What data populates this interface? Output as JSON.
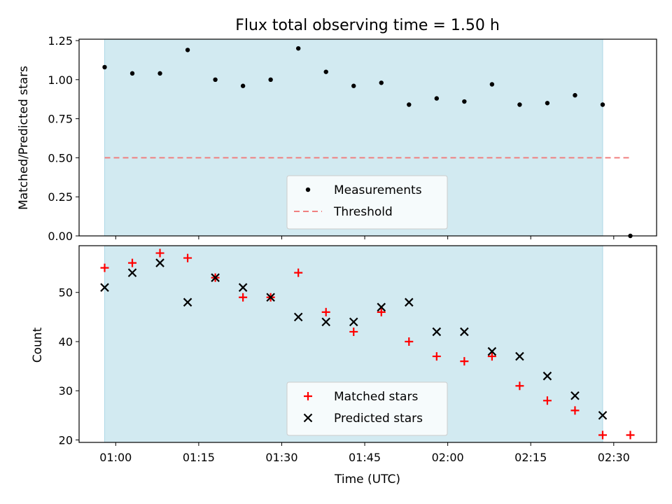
{
  "chart_data": [
    {
      "type": "scatter",
      "title": "Flux total observing time = 1.50 h",
      "ylabel": "Matched/Predicted stars",
      "xlabel": "",
      "ylim": [
        0,
        1.25
      ],
      "yticks": [
        "0.00",
        "0.25",
        "0.50",
        "0.75",
        "1.00",
        "1.25"
      ],
      "shaded_span": [
        "00:58",
        "02:28"
      ],
      "shade_color": "#add8e6",
      "legend_placement": "lower center",
      "series": [
        {
          "name": "Measurements",
          "marker": "dot",
          "color": "#000000",
          "x": [
            "00:58",
            "01:03",
            "01:08",
            "01:13",
            "01:18",
            "01:23",
            "01:28",
            "01:33",
            "01:38",
            "01:43",
            "01:48",
            "01:53",
            "01:58",
            "02:03",
            "02:08",
            "02:13",
            "02:18",
            "02:23",
            "02:28",
            "02:33"
          ],
          "y": [
            1.08,
            1.04,
            1.04,
            1.19,
            1.0,
            0.96,
            1.0,
            1.2,
            1.05,
            0.96,
            0.98,
            0.84,
            0.88,
            0.86,
            0.97,
            0.84,
            0.85,
            0.9,
            0.84,
            0.0
          ]
        },
        {
          "name": "Threshold",
          "marker": "dashed-line",
          "color": "#f08080",
          "x": [
            "00:58",
            "02:33"
          ],
          "y": [
            0.5,
            0.5
          ]
        }
      ]
    },
    {
      "type": "scatter",
      "title": "",
      "ylabel": "Count",
      "xlabel": "Time (UTC)",
      "ylim": [
        19.5,
        59.5
      ],
      "yticks": [
        "20",
        "30",
        "40",
        "50"
      ],
      "xticks": [
        "01:00",
        "01:15",
        "01:30",
        "01:45",
        "02:00",
        "02:15",
        "02:30"
      ],
      "shaded_span": [
        "00:58",
        "02:28"
      ],
      "shade_color": "#add8e6",
      "legend_placement": "lower center",
      "series": [
        {
          "name": "Matched stars",
          "marker": "plus",
          "color": "#ff0000",
          "x": [
            "00:58",
            "01:03",
            "01:08",
            "01:13",
            "01:18",
            "01:23",
            "01:28",
            "01:33",
            "01:38",
            "01:43",
            "01:48",
            "01:53",
            "01:58",
            "02:03",
            "02:08",
            "02:13",
            "02:18",
            "02:23",
            "02:28",
            "02:33"
          ],
          "y": [
            55,
            56,
            58,
            57,
            53,
            49,
            49,
            54,
            46,
            42,
            46,
            40,
            37,
            36,
            37,
            31,
            28,
            26,
            21,
            21
          ]
        },
        {
          "name": "Predicted stars",
          "marker": "x",
          "color": "#000000",
          "x": [
            "00:58",
            "01:03",
            "01:08",
            "01:13",
            "01:18",
            "01:23",
            "01:28",
            "01:33",
            "01:38",
            "01:43",
            "01:48",
            "01:53",
            "01:58",
            "02:03",
            "02:08",
            "02:13",
            "02:18",
            "02:23",
            "02:28"
          ],
          "y": [
            51,
            54,
            56,
            48,
            53,
            51,
            49,
            45,
            44,
            44,
            47,
            48,
            42,
            42,
            38,
            37,
            33,
            29,
            25
          ]
        }
      ]
    }
  ]
}
